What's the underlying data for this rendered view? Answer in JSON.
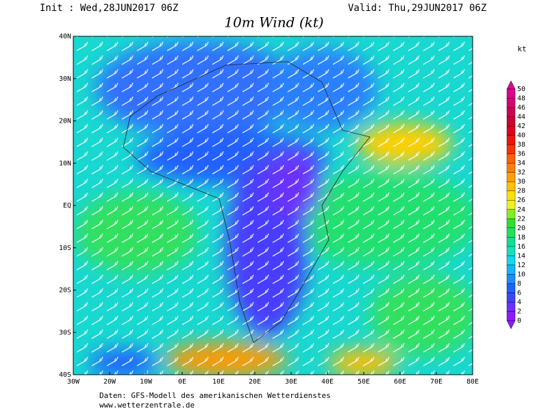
{
  "header": {
    "init": "Init : Wed,28JUN2017 06Z",
    "valid": "Valid: Thu,29JUN2017 06Z",
    "title": "10m Wind (kt)"
  },
  "map": {
    "lat_labels": [
      "40N",
      "30N",
      "20N",
      "10N",
      "EQ",
      "10S",
      "20S",
      "30S",
      "40S"
    ],
    "lon_labels": [
      "30W",
      "20W",
      "10W",
      "0E",
      "10E",
      "20E",
      "30E",
      "40E",
      "50E",
      "60E",
      "70E",
      "80E"
    ]
  },
  "colorbar": {
    "unit": "kt",
    "levels": [
      0,
      2,
      4,
      6,
      8,
      10,
      12,
      14,
      16,
      18,
      20,
      22,
      24,
      26,
      28,
      30,
      32,
      34,
      36,
      38,
      40,
      42,
      44,
      46,
      48,
      50
    ],
    "colors": [
      "#8c1aff",
      "#6a30ff",
      "#3c46ff",
      "#2060ff",
      "#1a8cff",
      "#14b4ff",
      "#10d8f0",
      "#10e0c0",
      "#10e090",
      "#20e060",
      "#30e030",
      "#80f020",
      "#f0f020",
      "#ffe000",
      "#ffc000",
      "#ffa000",
      "#ff8000",
      "#ff6000",
      "#ff3000",
      "#f01010",
      "#e00020",
      "#d00030",
      "#d00050",
      "#d80070",
      "#e00090"
    ]
  },
  "footer": {
    "line1": "Daten: GFS-Modell des amerikanischen Wetterdienstes",
    "line2": "www.wetterzentrale.de"
  }
}
